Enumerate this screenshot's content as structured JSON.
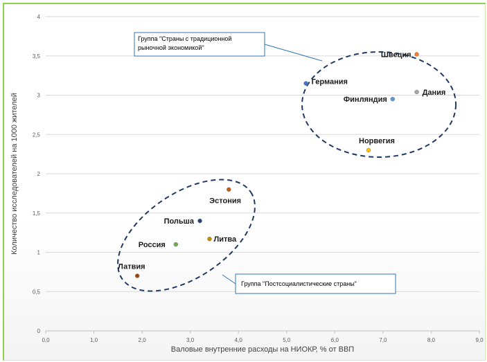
{
  "chart_data": {
    "type": "scatter",
    "xlabel": "Валовые внутренние расходы на НИОКР, % от ВВП",
    "ylabel": "Количество исследователей на 1000 жителей",
    "xlim": [
      0,
      9
    ],
    "ylim": [
      0,
      4
    ],
    "xticks": [
      "0,0",
      "1,0",
      "2,0",
      "3,0",
      "4,0",
      "5,0",
      "6,0",
      "7,0",
      "8,0",
      "9,0"
    ],
    "yticks": [
      "0",
      "0,5",
      "1",
      "1,5",
      "2",
      "2,5",
      "3",
      "3,5",
      "4"
    ],
    "grid": "horizontal",
    "points": [
      {
        "label": "Швеция",
        "x": 7.7,
        "y": 3.52,
        "color": "#ed7d31"
      },
      {
        "label": "Германия",
        "x": 5.4,
        "y": 3.15,
        "color": "#4472c4"
      },
      {
        "label": "Дания",
        "x": 7.7,
        "y": 3.04,
        "color": "#a5a5a5"
      },
      {
        "label": "Финляндия",
        "x": 7.2,
        "y": 2.95,
        "color": "#5b9bd5"
      },
      {
        "label": "Норвегия",
        "x": 6.7,
        "y": 2.3,
        "color": "#ffc000"
      },
      {
        "label": "Эстония",
        "x": 3.8,
        "y": 1.8,
        "color": "#c55a11"
      },
      {
        "label": "Польша",
        "x": 3.2,
        "y": 1.4,
        "color": "#264478"
      },
      {
        "label": "Литва",
        "x": 3.4,
        "y": 1.17,
        "color": "#bf8f00"
      },
      {
        "label": "Россия",
        "x": 2.7,
        "y": 1.1,
        "color": "#70ad47"
      },
      {
        "label": "Латвия",
        "x": 1.9,
        "y": 0.7,
        "color": "#9e480e"
      }
    ],
    "annotations": [
      {
        "text_lines": [
          "Группа \"Страны с традиционной",
          "рыночной экономикой\""
        ]
      },
      {
        "text_lines": [
          "Группа \"Постсоциалистические страны\""
        ]
      }
    ]
  }
}
